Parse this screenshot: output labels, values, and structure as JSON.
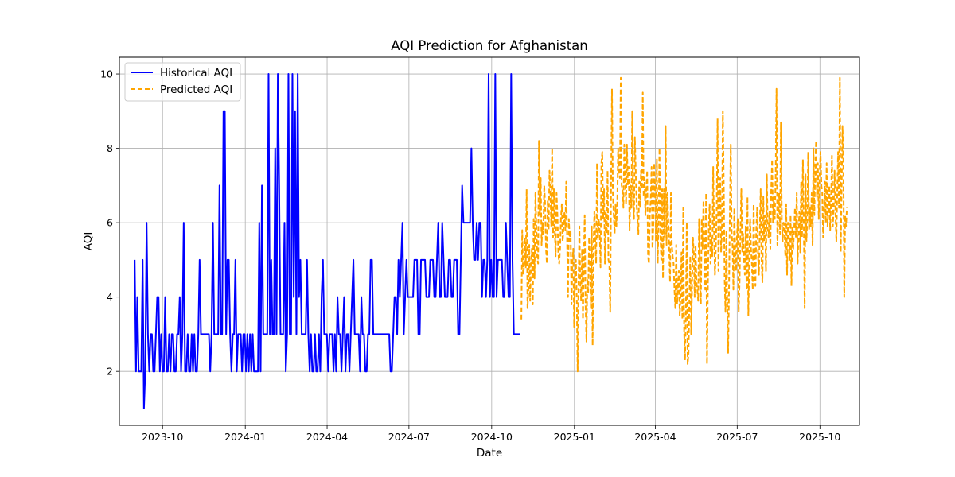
{
  "chart_data": {
    "type": "line",
    "title": "AQI Prediction for Afghanistan",
    "xlabel": "Date",
    "ylabel": "AQI",
    "x_range": [
      "2023-08-14",
      "2025-11-14"
    ],
    "ylim": [
      0.55,
      10.45
    ],
    "y_ticks": [
      2,
      4,
      6,
      8,
      10
    ],
    "x_ticks": [
      "2023-10",
      "2024-01",
      "2024-04",
      "2024-07",
      "2024-10",
      "2025-01",
      "2025-04",
      "2025-07",
      "2025-10"
    ],
    "grid": true,
    "legend_position": "top-left",
    "colors": {
      "historical": "#0000ff",
      "predicted": "#ffa500",
      "grid": "#b0b0b0",
      "axes": "#000000"
    },
    "series": [
      {
        "name": "Historical AQI",
        "style": "solid",
        "start_date": "2023-08-31",
        "end_date": "2024-11-02",
        "values": [
          5,
          2,
          4,
          2,
          2,
          2,
          5,
          1,
          2,
          6,
          3,
          2,
          3,
          3,
          2,
          2,
          3,
          4,
          4,
          2,
          3,
          2,
          2,
          4,
          2,
          2,
          3,
          2,
          3,
          3,
          2,
          2,
          3,
          3,
          4,
          2,
          3,
          6,
          2,
          2,
          3,
          2,
          2,
          3,
          2,
          3,
          2,
          2,
          3,
          5,
          3,
          3,
          3,
          3,
          3,
          3,
          3,
          2,
          3,
          6,
          3,
          3,
          3,
          3,
          7,
          3,
          3,
          9,
          9,
          3,
          5,
          5,
          3,
          2,
          3,
          3,
          5,
          2,
          3,
          3,
          3,
          2,
          3,
          3,
          2,
          3,
          2,
          3,
          2,
          3,
          2,
          2,
          2,
          2,
          6,
          2,
          7,
          3,
          3,
          3,
          3,
          10,
          3,
          5,
          3,
          3,
          8,
          3,
          10,
          7,
          3,
          3,
          3,
          6,
          2,
          3,
          10,
          3,
          3,
          10,
          4,
          9,
          3,
          10,
          4,
          5,
          3,
          3,
          3,
          3,
          5,
          3,
          2,
          3,
          2,
          2,
          3,
          2,
          2,
          3,
          2,
          4,
          5,
          3,
          3,
          3,
          2,
          3,
          3,
          3,
          2,
          3,
          2,
          4,
          3,
          3,
          2,
          3,
          4,
          2,
          3,
          3,
          2,
          3,
          4,
          5,
          3,
          3,
          3,
          3,
          2,
          4,
          3,
          3,
          2,
          2,
          3,
          3,
          5,
          5,
          3,
          3,
          3,
          3,
          3,
          3,
          3,
          3,
          3,
          3,
          3,
          3,
          3,
          2,
          2,
          3,
          4,
          4,
          3,
          5,
          4,
          5,
          6,
          3,
          4,
          5,
          4,
          4,
          4,
          4,
          4,
          5,
          5,
          5,
          3,
          3,
          5,
          5,
          5,
          5,
          4,
          4,
          4,
          5,
          5,
          5,
          4,
          4,
          5,
          6,
          4,
          4,
          6,
          5,
          4,
          4,
          4,
          5,
          5,
          4,
          4,
          5,
          5,
          5,
          3,
          3,
          5,
          7,
          6,
          6,
          6,
          6,
          6,
          6,
          8,
          6,
          5,
          5,
          6,
          5,
          6,
          6,
          4,
          5,
          5,
          4,
          5,
          10,
          4,
          5,
          4,
          4,
          10,
          4,
          5,
          5,
          5,
          5,
          4,
          4,
          6,
          5,
          4,
          4,
          10,
          5,
          3,
          3,
          3,
          3,
          3,
          3
        ]
      },
      {
        "name": "Predicted AQI",
        "style": "dashed",
        "start_date": "2024-11-03",
        "end_date": "2025-10-31",
        "values": [
          3.4,
          5.8,
          4.6,
          4.8,
          5.6,
          4.8,
          6.9,
          3.7,
          4.2,
          5.4,
          3.9,
          4.9,
          5.3,
          3.8,
          6.1,
          4.5,
          6.8,
          5.9,
          5.1,
          4.9,
          8.2,
          6.2,
          7.2,
          5.4,
          6.0,
          5.7,
          7.0,
          6.5,
          5.3,
          4.9,
          6.6,
          5.8,
          7.4,
          6.8,
          5.9,
          8.0,
          5.6,
          6.9,
          5.8,
          5.1,
          6.8,
          6.2,
          5.2,
          4.9,
          5.3,
          6.1,
          6.5,
          5.5,
          5.9,
          6.3,
          5.8,
          7.1,
          5.5,
          4.0,
          6.1,
          5.5,
          5.8,
          3.8,
          4.9,
          5.3,
          3.2,
          4.6,
          5.0,
          3.9,
          2.0,
          4.4,
          5.9,
          4.3,
          3.9,
          5.3,
          3.4,
          4.9,
          6.2,
          3.8,
          2.8,
          4.5,
          4.1,
          5.6,
          5.0,
          3.7,
          5.9,
          2.7,
          5.3,
          6.3,
          5.5,
          4.9,
          7.6,
          5.6,
          6.1,
          5.8,
          4.8,
          7.6,
          7.9,
          6.1,
          6.9,
          4.9,
          6.3,
          5.7,
          7.4,
          5.0,
          4.9,
          3.6,
          7.1,
          9.6,
          6.8,
          6.2,
          5.7,
          6.5,
          5.9,
          6.5,
          8.0,
          7.4,
          7.2,
          9.9,
          7.0,
          6.9,
          6.4,
          8.1,
          7.2,
          6.5,
          8.1,
          7.0,
          7.5,
          5.8,
          7.0,
          6.4,
          9.0,
          6.5,
          6.1,
          8.3,
          7.4,
          6.5,
          6.1,
          5.7,
          7.1,
          6.4,
          7.4,
          6.9,
          9.5,
          6.7,
          7.2,
          6.2,
          6.9,
          7.4,
          5.1,
          4.9,
          6.2,
          6.6,
          7.5,
          5.3,
          5.9,
          7.6,
          6.9,
          5.5,
          7.7,
          4.9,
          6.1,
          8.0,
          5.7,
          5.0,
          6.9,
          4.5,
          6.9,
          5.6,
          8.6,
          5.4,
          6.8,
          6.1,
          5.3,
          4.4,
          6.8,
          5.4,
          5.1,
          4.9,
          4.2,
          3.7,
          5.4,
          3.8,
          4.3,
          4.7,
          3.5,
          4.1,
          5.2,
          3.4,
          6.4,
          3.1,
          2.3,
          3.6,
          6.0,
          2.2,
          2.5,
          4.0,
          5.1,
          3.0,
          4.3,
          5.6,
          5.2,
          4.0,
          5.4,
          4.4,
          4.2,
          3.9,
          6.1,
          4.6,
          3.8,
          6.1,
          5.3,
          6.6,
          5.4,
          4.2,
          6.8,
          2.2,
          4.3,
          5.9,
          6.5,
          4.9,
          5.6,
          5.1,
          7.5,
          5.8,
          4.6,
          5.3,
          6.4,
          8.8,
          4.7,
          6.3,
          7.2,
          5.2,
          5.8,
          9.0,
          7.1,
          4.5,
          3.6,
          5.8,
          3.8,
          2.5,
          4.2,
          6.3,
          8.1,
          5.7,
          5.4,
          4.2,
          6.4,
          5.3,
          4.7,
          5.6,
          6.1,
          3.6,
          4.4,
          5.8,
          6.9,
          5.2,
          5.7,
          5.0,
          4.6,
          5.9,
          4.2,
          6.7,
          3.5,
          5.0,
          6.1,
          5.3,
          4.9,
          4.2,
          6.5,
          5.0,
          4.3,
          5.8,
          6.4,
          5.1,
          4.6,
          5.8,
          6.9,
          5.0,
          4.4,
          6.7,
          5.5,
          6.2,
          4.7,
          7.3,
          5.8,
          5.6,
          6.3,
          5.3,
          6.9,
          7.7,
          6.0,
          6.7,
          6.1,
          7.2,
          9.6,
          5.4,
          6.2,
          6.8,
          5.7,
          8.7,
          6.1,
          5.5,
          6.0,
          5.9,
          5.1,
          6.5,
          4.6,
          6.0,
          5.6,
          5.0,
          6.2,
          4.3,
          5.9,
          5.3,
          5.8,
          6.4,
          5.6,
          6.8,
          4.9,
          5.7,
          6.3,
          5.2,
          7.1,
          5.6,
          7.7,
          6.0,
          3.7,
          7.3,
          5.5,
          6.1,
          7.9,
          5.8,
          6.4,
          5.9,
          6.8,
          5.4,
          8.0,
          6.2,
          7.5,
          8.2,
          6.7,
          7.6,
          6.1,
          7.3,
          7.9,
          7.0,
          6.8,
          5.6,
          6.3,
          7.1,
          6.0,
          7.6,
          5.9,
          6.4,
          7.0,
          5.8,
          6.6,
          7.8,
          5.9,
          6.4,
          7.4,
          6.3,
          5.5,
          6.8,
          7.9,
          6.4,
          9.9,
          5.2,
          6.9,
          8.6,
          7.7,
          4.0,
          6.2,
          5.9,
          6.4
        ]
      }
    ]
  }
}
